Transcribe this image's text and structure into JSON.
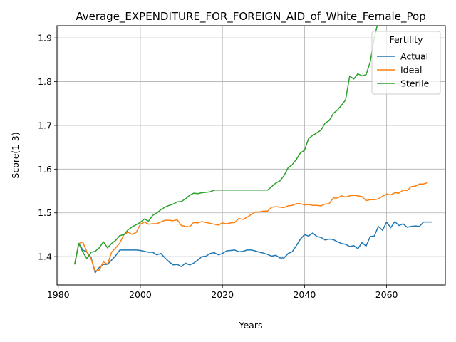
{
  "chart_data": {
    "type": "line",
    "title": "Average_EXPENDITURE_FOR_FOREIGN_AID_of_White_Female_Pop",
    "xlabel": "Years",
    "ylabel": "Score(1-3)",
    "xlim": [
      1979.7,
      2074.3
    ],
    "ylim": [
      1.335,
      1.928
    ],
    "grid": true,
    "legend": {
      "title": "Fertility",
      "position": "top-right"
    },
    "x_ticks": [
      1980,
      2000,
      2020,
      2040,
      2060
    ],
    "y_ticks": [
      1.4,
      1.5,
      1.6,
      1.7,
      1.8,
      1.9
    ],
    "series": [
      {
        "name": "Actual",
        "color": "#1f77b4",
        "points": [
          [
            1984,
            1.382
          ],
          [
            1985,
            1.43
          ],
          [
            1986,
            1.415
          ],
          [
            1987,
            1.41
          ],
          [
            1988,
            1.398
          ],
          [
            1989,
            1.363
          ],
          [
            1990,
            1.375
          ],
          [
            1991,
            1.382
          ],
          [
            1992,
            1.382
          ],
          [
            1993,
            1.392
          ],
          [
            1994,
            1.402
          ],
          [
            1995,
            1.415
          ],
          [
            1996,
            1.415
          ],
          [
            1997,
            1.415
          ],
          [
            1998,
            1.415
          ],
          [
            1999,
            1.415
          ],
          [
            2000,
            1.414
          ],
          [
            2001,
            1.412
          ],
          [
            2002,
            1.41
          ],
          [
            2003,
            1.41
          ],
          [
            2004,
            1.404
          ],
          [
            2005,
            1.407
          ],
          [
            2006,
            1.397
          ],
          [
            2007,
            1.388
          ],
          [
            2008,
            1.381
          ],
          [
            2009,
            1.382
          ],
          [
            2010,
            1.377
          ],
          [
            2011,
            1.385
          ],
          [
            2012,
            1.381
          ],
          [
            2013,
            1.385
          ],
          [
            2014,
            1.392
          ],
          [
            2015,
            1.4
          ],
          [
            2016,
            1.401
          ],
          [
            2017,
            1.407
          ],
          [
            2018,
            1.409
          ],
          [
            2019,
            1.404
          ],
          [
            2020,
            1.407
          ],
          [
            2021,
            1.413
          ],
          [
            2022,
            1.414
          ],
          [
            2023,
            1.415
          ],
          [
            2024,
            1.411
          ],
          [
            2025,
            1.412
          ],
          [
            2026,
            1.415
          ],
          [
            2027,
            1.415
          ],
          [
            2028,
            1.413
          ],
          [
            2029,
            1.41
          ],
          [
            2030,
            1.408
          ],
          [
            2031,
            1.405
          ],
          [
            2032,
            1.401
          ],
          [
            2033,
            1.403
          ],
          [
            2034,
            1.397
          ],
          [
            2035,
            1.397
          ],
          [
            2036,
            1.407
          ],
          [
            2037,
            1.411
          ],
          [
            2038,
            1.425
          ],
          [
            2039,
            1.44
          ],
          [
            2040,
            1.45
          ],
          [
            2041,
            1.447
          ],
          [
            2042,
            1.454
          ],
          [
            2043,
            1.446
          ],
          [
            2044,
            1.444
          ],
          [
            2045,
            1.438
          ],
          [
            2046,
            1.44
          ],
          [
            2047,
            1.439
          ],
          [
            2048,
            1.434
          ],
          [
            2049,
            1.43
          ],
          [
            2050,
            1.428
          ],
          [
            2051,
            1.423
          ],
          [
            2052,
            1.425
          ],
          [
            2053,
            1.418
          ],
          [
            2054,
            1.432
          ],
          [
            2055,
            1.424
          ],
          [
            2056,
            1.446
          ],
          [
            2057,
            1.447
          ],
          [
            2058,
            1.469
          ],
          [
            2059,
            1.46
          ],
          [
            2060,
            1.479
          ],
          [
            2061,
            1.466
          ],
          [
            2062,
            1.48
          ],
          [
            2063,
            1.471
          ],
          [
            2064,
            1.475
          ],
          [
            2065,
            1.467
          ],
          [
            2066,
            1.469
          ],
          [
            2067,
            1.47
          ],
          [
            2068,
            1.469
          ],
          [
            2069,
            1.479
          ],
          [
            2070,
            1.479
          ],
          [
            2071,
            1.479
          ]
        ]
      },
      {
        "name": "Ideal",
        "color": "#ff7f0e",
        "points": [
          [
            1984,
            1.382
          ],
          [
            1985,
            1.43
          ],
          [
            1986,
            1.433
          ],
          [
            1987,
            1.41
          ],
          [
            1988,
            1.395
          ],
          [
            1989,
            1.367
          ],
          [
            1990,
            1.369
          ],
          [
            1991,
            1.388
          ],
          [
            1992,
            1.382
          ],
          [
            1993,
            1.41
          ],
          [
            1994,
            1.42
          ],
          [
            1995,
            1.431
          ],
          [
            1996,
            1.45
          ],
          [
            1997,
            1.456
          ],
          [
            1998,
            1.451
          ],
          [
            1999,
            1.455
          ],
          [
            2000,
            1.474
          ],
          [
            2001,
            1.479
          ],
          [
            2002,
            1.474
          ],
          [
            2003,
            1.475
          ],
          [
            2004,
            1.475
          ],
          [
            2005,
            1.479
          ],
          [
            2006,
            1.483
          ],
          [
            2007,
            1.483
          ],
          [
            2008,
            1.482
          ],
          [
            2009,
            1.484
          ],
          [
            2010,
            1.471
          ],
          [
            2011,
            1.469
          ],
          [
            2012,
            1.468
          ],
          [
            2013,
            1.478
          ],
          [
            2014,
            1.477
          ],
          [
            2015,
            1.48
          ],
          [
            2016,
            1.478
          ],
          [
            2017,
            1.476
          ],
          [
            2018,
            1.474
          ],
          [
            2019,
            1.472
          ],
          [
            2020,
            1.477
          ],
          [
            2021,
            1.475
          ],
          [
            2022,
            1.477
          ],
          [
            2023,
            1.478
          ],
          [
            2024,
            1.487
          ],
          [
            2025,
            1.485
          ],
          [
            2026,
            1.49
          ],
          [
            2027,
            1.496
          ],
          [
            2028,
            1.502
          ],
          [
            2029,
            1.502
          ],
          [
            2030,
            1.504
          ],
          [
            2031,
            1.504
          ],
          [
            2032,
            1.513
          ],
          [
            2033,
            1.514
          ],
          [
            2034,
            1.513
          ],
          [
            2035,
            1.512
          ],
          [
            2036,
            1.516
          ],
          [
            2037,
            1.517
          ],
          [
            2038,
            1.521
          ],
          [
            2039,
            1.521
          ],
          [
            2040,
            1.518
          ],
          [
            2041,
            1.519
          ],
          [
            2042,
            1.517
          ],
          [
            2043,
            1.517
          ],
          [
            2044,
            1.516
          ],
          [
            2045,
            1.52
          ],
          [
            2046,
            1.521
          ],
          [
            2047,
            1.534
          ],
          [
            2048,
            1.534
          ],
          [
            2049,
            1.539
          ],
          [
            2050,
            1.536
          ],
          [
            2051,
            1.539
          ],
          [
            2052,
            1.54
          ],
          [
            2053,
            1.539
          ],
          [
            2054,
            1.537
          ],
          [
            2055,
            1.528
          ],
          [
            2056,
            1.53
          ],
          [
            2057,
            1.53
          ],
          [
            2058,
            1.532
          ],
          [
            2059,
            1.538
          ],
          [
            2060,
            1.543
          ],
          [
            2061,
            1.541
          ],
          [
            2062,
            1.546
          ],
          [
            2063,
            1.545
          ],
          [
            2064,
            1.552
          ],
          [
            2065,
            1.551
          ],
          [
            2066,
            1.56
          ],
          [
            2067,
            1.561
          ],
          [
            2068,
            1.566
          ],
          [
            2069,
            1.566
          ],
          [
            2070,
            1.569
          ]
        ]
      },
      {
        "name": "Sterile",
        "color": "#2ca02c",
        "points": [
          [
            1984,
            1.382
          ],
          [
            1985,
            1.43
          ],
          [
            1986,
            1.41
          ],
          [
            1987,
            1.395
          ],
          [
            1988,
            1.41
          ],
          [
            1989,
            1.412
          ],
          [
            1990,
            1.42
          ],
          [
            1991,
            1.434
          ],
          [
            1992,
            1.42
          ],
          [
            1993,
            1.43
          ],
          [
            1994,
            1.437
          ],
          [
            1995,
            1.448
          ],
          [
            1996,
            1.45
          ],
          [
            1997,
            1.461
          ],
          [
            1998,
            1.468
          ],
          [
            1999,
            1.473
          ],
          [
            2000,
            1.478
          ],
          [
            2001,
            1.486
          ],
          [
            2002,
            1.481
          ],
          [
            2003,
            1.494
          ],
          [
            2004,
            1.5
          ],
          [
            2005,
            1.507
          ],
          [
            2006,
            1.513
          ],
          [
            2007,
            1.517
          ],
          [
            2008,
            1.52
          ],
          [
            2009,
            1.525
          ],
          [
            2010,
            1.526
          ],
          [
            2011,
            1.532
          ],
          [
            2012,
            1.54
          ],
          [
            2013,
            1.545
          ],
          [
            2014,
            1.544
          ],
          [
            2015,
            1.546
          ],
          [
            2016,
            1.547
          ],
          [
            2017,
            1.548
          ],
          [
            2018,
            1.552
          ],
          [
            2019,
            1.552
          ],
          [
            2020,
            1.552
          ],
          [
            2021,
            1.552
          ],
          [
            2022,
            1.552
          ],
          [
            2023,
            1.552
          ],
          [
            2024,
            1.552
          ],
          [
            2025,
            1.552
          ],
          [
            2026,
            1.552
          ],
          [
            2027,
            1.552
          ],
          [
            2028,
            1.552
          ],
          [
            2029,
            1.552
          ],
          [
            2030,
            1.552
          ],
          [
            2031,
            1.552
          ],
          [
            2032,
            1.56
          ],
          [
            2033,
            1.568
          ],
          [
            2034,
            1.573
          ],
          [
            2035,
            1.585
          ],
          [
            2036,
            1.603
          ],
          [
            2037,
            1.61
          ],
          [
            2038,
            1.622
          ],
          [
            2039,
            1.637
          ],
          [
            2040,
            1.643
          ],
          [
            2041,
            1.67
          ],
          [
            2042,
            1.677
          ],
          [
            2043,
            1.683
          ],
          [
            2044,
            1.689
          ],
          [
            2045,
            1.705
          ],
          [
            2046,
            1.711
          ],
          [
            2047,
            1.727
          ],
          [
            2048,
            1.735
          ],
          [
            2049,
            1.746
          ],
          [
            2050,
            1.758
          ],
          [
            2051,
            1.813
          ],
          [
            2052,
            1.806
          ],
          [
            2053,
            1.818
          ],
          [
            2054,
            1.813
          ],
          [
            2055,
            1.816
          ],
          [
            2056,
            1.845
          ],
          [
            2057,
            1.9
          ],
          [
            2058,
            1.94
          ]
        ]
      }
    ]
  }
}
